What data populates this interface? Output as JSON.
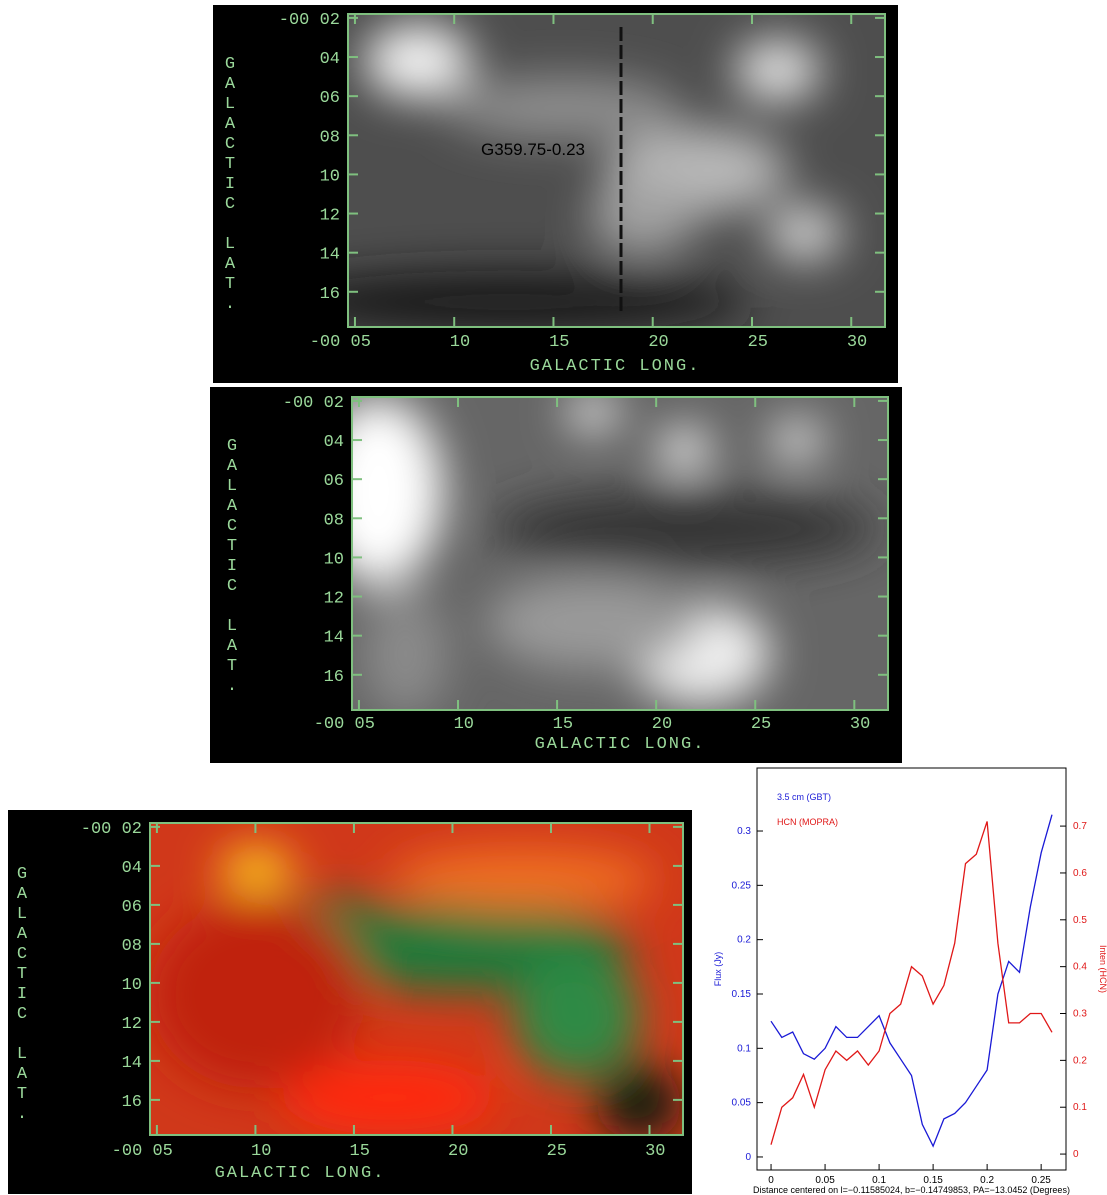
{
  "chart_data": [
    {
      "type": "image",
      "annotation": "G359.75-0.23",
      "xlabel": "GALACTIC LONG.",
      "ylabel": "GALACTIC LAT.",
      "xlim": [
        4.65,
        31.7
      ],
      "ylim": [
        17.8,
        1.8
      ],
      "xticks": [
        {
          "value": 5,
          "label": "-00 05"
        },
        10,
        15,
        20,
        25,
        30
      ],
      "yticks": [
        {
          "value": 2,
          "label": "-00 02"
        },
        {
          "value": 4,
          "label": "04"
        },
        {
          "value": 6,
          "label": "06"
        },
        {
          "value": 8,
          "label": "08"
        },
        10,
        12,
        14,
        16
      ]
    },
    {
      "type": "image",
      "xlabel": "GALACTIC LONG.",
      "ylabel": "GALACTIC LAT.",
      "xlim": [
        4.65,
        31.7
      ],
      "ylim": [
        17.8,
        1.8
      ],
      "xticks": [
        {
          "value": 5,
          "label": "-00 05"
        },
        10,
        15,
        20,
        25,
        30
      ],
      "yticks": [
        {
          "value": 2,
          "label": "-00 02"
        },
        {
          "value": 4,
          "label": "04"
        },
        {
          "value": 6,
          "label": "06"
        },
        {
          "value": 8,
          "label": "08"
        },
        10,
        12,
        14,
        16
      ]
    },
    {
      "type": "image",
      "xlabel": "GALACTIC LONG.",
      "ylabel": "GALACTIC LAT.",
      "xlim": [
        4.65,
        31.7
      ],
      "ylim": [
        17.8,
        1.8
      ],
      "xticks": [
        {
          "value": 5,
          "label": "-00 05"
        },
        10,
        15,
        20,
        25,
        30
      ],
      "yticks": [
        {
          "value": 2,
          "label": "-00 02"
        },
        {
          "value": 4,
          "label": "04"
        },
        {
          "value": 6,
          "label": "06"
        },
        {
          "value": 8,
          "label": "08"
        },
        10,
        12,
        14,
        16
      ]
    },
    {
      "type": "line",
      "xlabel": "Distance centered on l=−0.11585024, b=−0.14749853, PA=−13.0452  (Degrees)",
      "ylabel": "Flux (Jy)",
      "y2label": "Inten (HCN)",
      "legend": "upper left",
      "x": [
        0,
        0.01,
        0.02,
        0.03,
        0.04,
        0.05,
        0.06,
        0.07,
        0.08,
        0.09,
        0.1,
        0.11,
        0.12,
        0.13,
        0.14,
        0.15,
        0.16,
        0.17,
        0.18,
        0.19,
        0.2,
        0.21,
        0.22,
        0.23,
        0.24,
        0.25,
        0.26
      ],
      "series": [
        {
          "name": "3.5 cm (GBT)",
          "color": "#1a1ad6",
          "values": [
            0.125,
            0.11,
            0.115,
            0.095,
            0.09,
            0.1,
            0.12,
            0.11,
            0.11,
            0.12,
            0.13,
            0.105,
            0.09,
            0.075,
            0.03,
            0.01,
            0.035,
            0.04,
            0.05,
            0.065,
            0.08,
            0.15,
            0.18,
            0.17,
            0.23,
            0.28,
            0.315
          ]
        },
        {
          "name": "HCN (MOPRA)",
          "color": "#e01818",
          "axis": "y2",
          "values": [
            0.02,
            0.1,
            0.12,
            0.17,
            0.1,
            0.18,
            0.22,
            0.2,
            0.22,
            0.19,
            0.22,
            0.3,
            0.32,
            0.4,
            0.38,
            0.32,
            0.36,
            0.45,
            0.62,
            0.64,
            0.71,
            0.45,
            0.28,
            0.28,
            0.3,
            0.3,
            0.26
          ]
        }
      ],
      "xlim": [
        -0.013,
        0.273
      ],
      "xticks": [
        0,
        0.05,
        0.1,
        0.15,
        0.2,
        0.25
      ],
      "ylim": [
        -0.012,
        0.358
      ],
      "yticks": [
        0,
        0.05,
        0.1,
        0.15,
        0.2,
        0.25,
        0.3
      ],
      "y2lim": [
        -0.034,
        0.824
      ],
      "y2ticks": [
        0,
        0.1,
        0.2,
        0.3,
        0.4,
        0.5,
        0.6,
        0.7
      ]
    }
  ]
}
